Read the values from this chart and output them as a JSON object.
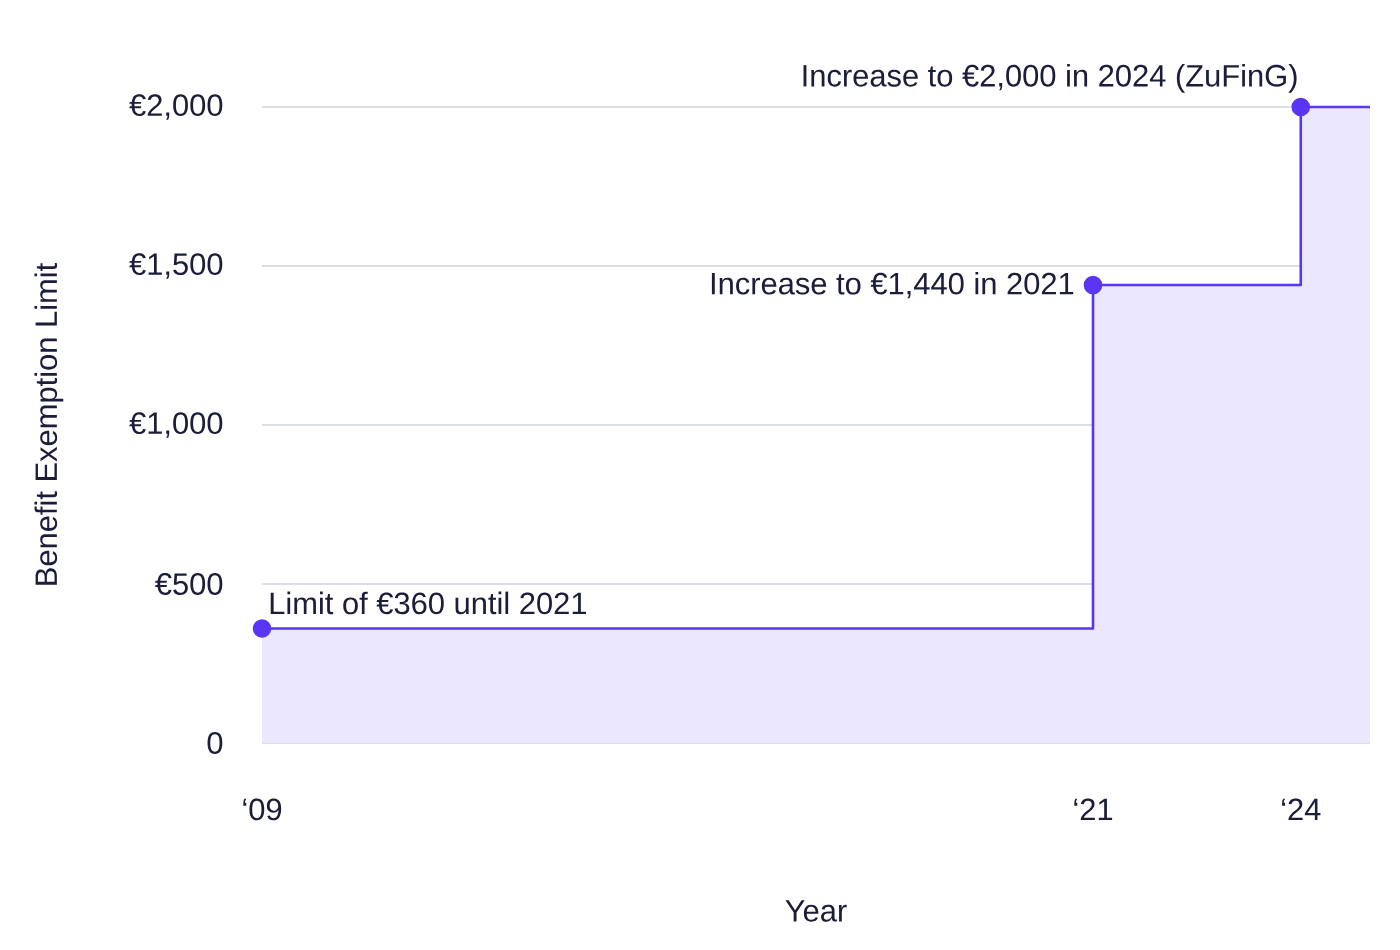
{
  "chart_data": {
    "type": "step",
    "xlabel": "Year",
    "ylabel": "Benefit Exemption Limit",
    "x": [
      "2009",
      "2021",
      "2024",
      "2025"
    ],
    "series": [
      {
        "type": "area",
        "color": "#5b35f5",
        "values": [
          360,
          1440,
          2000,
          2000
        ]
      }
    ],
    "xlim": [
      "2009",
      "2025"
    ],
    "xticks": [
      {
        "value": "2009",
        "label": "‘09"
      },
      {
        "value": "2021",
        "label": "‘21"
      },
      {
        "value": "2024",
        "label": "‘24"
      }
    ],
    "ylim": [
      0,
      2000
    ],
    "yticks": [
      0,
      {
        "value": 500,
        "label": "€500"
      },
      {
        "value": 1000,
        "label": "€1,000"
      },
      {
        "value": 1500,
        "label": "€1,500"
      },
      {
        "value": 2000,
        "label": "€2,000"
      }
    ],
    "grid": "y",
    "marker": "circle",
    "annotations": [
      {
        "text": "Limit of €360 until 2021",
        "x": "2009",
        "y": 360
      },
      {
        "text": "Increase to €1,440 in 2021",
        "x": "2021",
        "y": 1440
      },
      {
        "text": "Increase to €2,000 in 2024 (ZuFinG)",
        "x": "2024",
        "y": 2000
      }
    ]
  }
}
